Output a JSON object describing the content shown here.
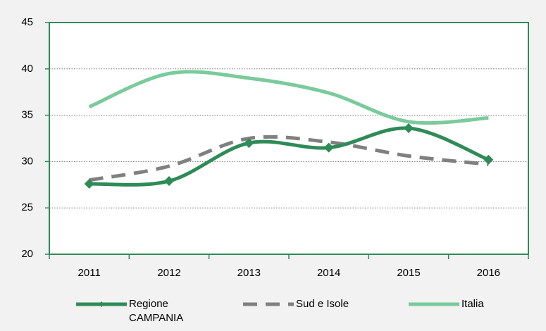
{
  "chart_data": {
    "type": "line",
    "categories": [
      "2011",
      "2012",
      "2013",
      "2014",
      "2015",
      "2016"
    ],
    "series": [
      {
        "name": "Regione CAMPANIA",
        "color": "#2e8b57",
        "values": [
          27.6,
          27.9,
          32.0,
          31.5,
          33.6,
          30.2
        ]
      },
      {
        "name": "Sud e Isole",
        "color": "#808080",
        "values": [
          28.0,
          29.5,
          32.5,
          32.1,
          30.6,
          29.7
        ]
      },
      {
        "name": "Italia",
        "color": "#7acb9b",
        "values": [
          35.9,
          39.5,
          39.0,
          37.4,
          34.3,
          34.7
        ]
      }
    ],
    "ylim": [
      20,
      45
    ],
    "yticks": [
      20,
      25,
      30,
      35,
      40,
      45
    ],
    "grid": true,
    "legend": "bottom"
  }
}
